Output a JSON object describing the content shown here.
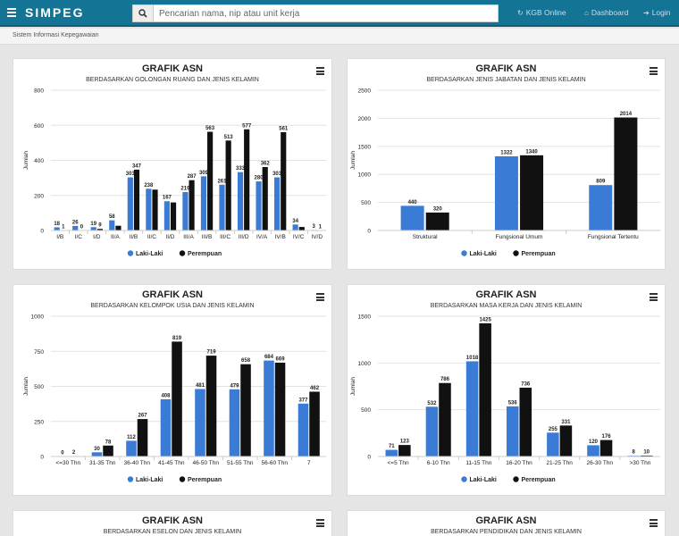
{
  "navbar": {
    "brand": "SIMPEG",
    "search_placeholder": "Pencarian nama, nip atau unit kerja",
    "links": [
      {
        "label": "KGB Online",
        "icon": "refresh-icon"
      },
      {
        "label": "Dashboard",
        "icon": "home-icon"
      },
      {
        "label": "Login",
        "icon": "login-icon"
      }
    ]
  },
  "breadcrumb": "Sistem Informasi Kepegawaian",
  "colors": {
    "navbar": "#137496",
    "laki": "#3a7bd5",
    "perempuan": "#111111"
  },
  "cards": [
    {
      "title": "GRAFIK ASN",
      "subtitle": "BERDASARKAN GOLONGAN RUANG DAN JENIS KELAMIN"
    },
    {
      "title": "GRAFIK ASN",
      "subtitle": "BERDASARKAN JENIS JABATAN DAN JENIS KELAMIN"
    },
    {
      "title": "GRAFIK ASN",
      "subtitle": "BERDASARKAN KELOMPOK USIA DAN JENIS KELAMIN"
    },
    {
      "title": "GRAFIK ASN",
      "subtitle": "BERDASARKAN MASA KERJA DAN JENIS KELAMIN"
    },
    {
      "title": "GRAFIK ASN",
      "subtitle": "BERDASARKAN ESELON DAN JENIS KELAMIN"
    },
    {
      "title": "GRAFIK ASN",
      "subtitle": "BERDASARKAN PENDIDIKAN DAN JENIS KELAMIN"
    }
  ],
  "chart_data": [
    {
      "type": "bar",
      "ylabel": "Jumlah",
      "ylim": [
        0,
        800
      ],
      "yticks": [
        0,
        200,
        400,
        600,
        800
      ],
      "categories": [
        "I/B",
        "I/C",
        "I/D",
        "II/A",
        "II/B",
        "II/C",
        "II/D",
        "III/A",
        "III/B",
        "III/C",
        "III/D",
        "IV/A",
        "IV/B",
        "IV/C",
        "IV/D"
      ],
      "series": [
        {
          "name": "Laki-Laki",
          "values": [
            18,
            26,
            19,
            58,
            303,
            238,
            167,
            219,
            309,
            261,
            333,
            280,
            303,
            34,
            3
          ]
        },
        {
          "name": "Perempuan",
          "values": [
            1,
            0,
            9,
            27,
            347,
            233,
            160,
            287,
            563,
            513,
            577,
            362,
            561,
            20,
            1
          ]
        }
      ],
      "labels": [
        [
          "18",
          "26",
          "19",
          "58",
          "303",
          "238",
          "167",
          "219",
          "309",
          "261",
          "333",
          "280",
          "303",
          "34",
          "3"
        ],
        [
          "1",
          "0",
          "9",
          "",
          "347",
          "",
          "",
          "287",
          "563",
          "513",
          "577",
          "362",
          "561",
          "",
          "1"
        ]
      ],
      "legend": "bottom"
    },
    {
      "type": "bar",
      "ylabel": "Jumlah",
      "ylim": [
        0,
        2500
      ],
      "yticks": [
        0,
        500,
        1000,
        1500,
        2000,
        2500
      ],
      "categories": [
        "Struktural",
        "Fungsional Umum",
        "Fungsional Tertentu"
      ],
      "series": [
        {
          "name": "Laki-Laki",
          "values": [
            440,
            1322,
            809
          ]
        },
        {
          "name": "Perempuan",
          "values": [
            320,
            1340,
            2014
          ]
        }
      ],
      "labels": [
        [
          "440",
          "1322",
          "809"
        ],
        [
          "320",
          "1340",
          "2014"
        ]
      ],
      "legend": "bottom"
    },
    {
      "type": "bar",
      "ylabel": "Jumlah",
      "ylim": [
        0,
        1000
      ],
      "yticks": [
        0,
        250,
        500,
        750,
        1000
      ],
      "categories": [
        "<=30 Thn",
        "31-35 Thn",
        "36-40 Thn",
        "41-45 Thn",
        "46-50 Thn",
        "51-55 Thn",
        "56-60 Thn",
        "7"
      ],
      "series": [
        {
          "name": "Laki-Laki",
          "values": [
            0,
            30,
            112,
            408,
            481,
            479,
            684,
            377
          ]
        },
        {
          "name": "Perempuan",
          "values": [
            2,
            78,
            267,
            819,
            719,
            658,
            669,
            462
          ]
        }
      ],
      "labels": [
        [
          "0",
          "30",
          "112",
          "408",
          "481",
          "479",
          "684",
          "377"
        ],
        [
          "2",
          "78",
          "267",
          "819",
          "719",
          "658",
          "669",
          "462"
        ]
      ],
      "legend": "bottom"
    },
    {
      "type": "bar",
      "ylabel": "Jumlah",
      "ylim": [
        0,
        1500
      ],
      "yticks": [
        0,
        500,
        1000,
        1500
      ],
      "categories": [
        "<=5 Thn",
        "6-10 Thn",
        "11-15 Thn",
        "16-20 Thn",
        "21-25 Thn",
        "26-30 Thn",
        ">30 Thn"
      ],
      "series": [
        {
          "name": "Laki-Laki",
          "values": [
            71,
            532,
            1018,
            536,
            255,
            120,
            8
          ]
        },
        {
          "name": "Perempuan",
          "values": [
            123,
            786,
            1425,
            736,
            331,
            176,
            10
          ]
        }
      ],
      "labels": [
        [
          "71",
          "532",
          "1018",
          "536",
          "255",
          "120",
          "8"
        ],
        [
          "123",
          "786",
          "1425",
          "736",
          "331",
          "176",
          "10"
        ]
      ],
      "legend": "bottom"
    }
  ]
}
